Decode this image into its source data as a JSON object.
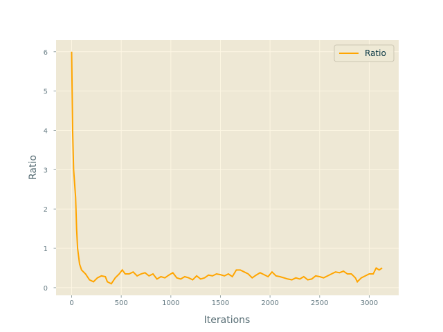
{
  "chart_data": {
    "type": "line",
    "xlabel": "Iterations",
    "ylabel": "Ratio",
    "x": [
      0,
      10,
      20,
      40,
      50,
      60,
      80,
      100,
      140,
      180,
      220,
      260,
      300,
      340,
      360,
      400,
      440,
      480,
      510,
      540,
      580,
      620,
      660,
      700,
      740,
      780,
      820,
      860,
      900,
      940,
      980,
      1020,
      1060,
      1100,
      1140,
      1180,
      1220,
      1260,
      1300,
      1340,
      1380,
      1420,
      1460,
      1500,
      1540,
      1580,
      1620,
      1660,
      1700,
      1740,
      1780,
      1820,
      1860,
      1900,
      1940,
      1980,
      2020,
      2060,
      2100,
      2140,
      2180,
      2220,
      2260,
      2300,
      2340,
      2380,
      2420,
      2460,
      2500,
      2540,
      2580,
      2620,
      2660,
      2700,
      2740,
      2780,
      2820,
      2860,
      2880,
      2920,
      2960,
      3000,
      3040,
      3070,
      3100,
      3130
    ],
    "series": [
      {
        "name": "Ratio",
        "color": "#ffa500",
        "values": [
          6,
          4.0,
          3.0,
          2.3,
          1.5,
          1.0,
          0.6,
          0.45,
          0.35,
          0.2,
          0.15,
          0.25,
          0.3,
          0.28,
          0.15,
          0.1,
          0.25,
          0.35,
          0.45,
          0.35,
          0.35,
          0.4,
          0.3,
          0.35,
          0.38,
          0.3,
          0.35,
          0.22,
          0.28,
          0.25,
          0.32,
          0.38,
          0.25,
          0.22,
          0.28,
          0.25,
          0.2,
          0.3,
          0.22,
          0.25,
          0.32,
          0.3,
          0.35,
          0.33,
          0.3,
          0.35,
          0.28,
          0.45,
          0.45,
          0.4,
          0.35,
          0.25,
          0.32,
          0.38,
          0.33,
          0.28,
          0.4,
          0.3,
          0.28,
          0.25,
          0.22,
          0.2,
          0.25,
          0.22,
          0.28,
          0.2,
          0.22,
          0.3,
          0.28,
          0.25,
          0.3,
          0.35,
          0.4,
          0.38,
          0.42,
          0.35,
          0.35,
          0.25,
          0.15,
          0.25,
          0.3,
          0.35,
          0.35,
          0.5,
          0.45,
          0.5
        ]
      }
    ],
    "xlim": [
      -157,
      3297
    ],
    "ylim": [
      -0.195,
      6.295
    ],
    "xticks": [
      0,
      500,
      1000,
      1500,
      2000,
      2500,
      3000
    ],
    "yticks": [
      0,
      1,
      2,
      3,
      4,
      5,
      6
    ],
    "grid": true,
    "legend": "upper right"
  }
}
